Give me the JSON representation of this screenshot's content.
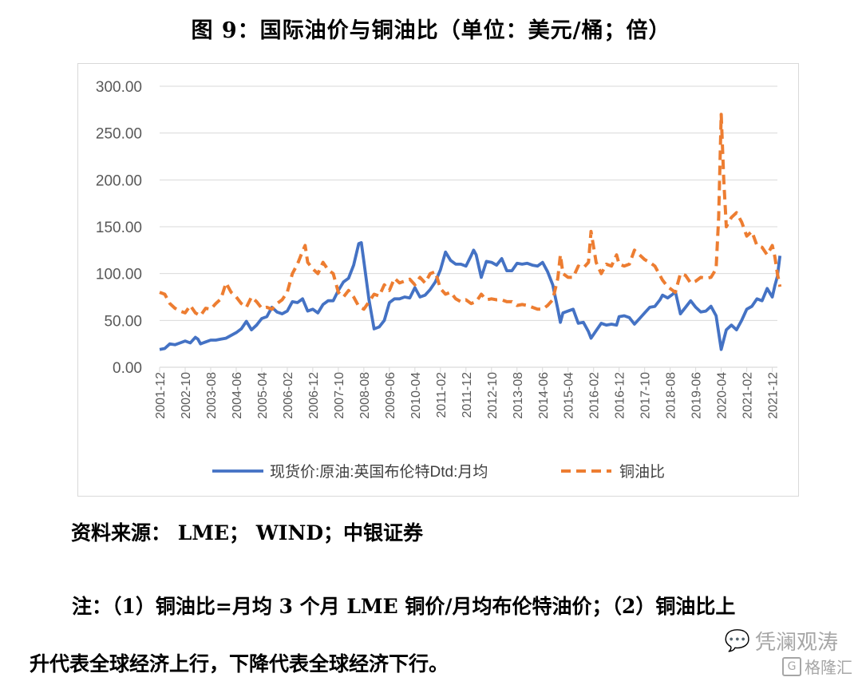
{
  "figure": {
    "title": "图 9：国际油价与铜油比（单位：美元/桶；倍）"
  },
  "source_text": "资料来源： LME； WIND；中银证券",
  "note": {
    "line1": "注：（1）铜油比=月均 3 个月 LME 铜价/月均布伦特油价；（2）铜油比上",
    "line2": "升代表全球经济上行，下降代表全球经济下行。"
  },
  "watermark": {
    "wechat": "凭澜观涛",
    "logo_mark": "G",
    "logo_text": "格隆汇"
  },
  "colors": {
    "oil": "#4472c4",
    "ratio": "#ed7d31",
    "grid": "#d9d9d9",
    "axis_text": "#595959"
  },
  "chart_data": {
    "type": "line",
    "ylim": [
      0,
      300
    ],
    "y_ticks": [
      "0.00",
      "50.00",
      "100.00",
      "150.00",
      "200.00",
      "250.00",
      "300.00"
    ],
    "x_tick_labels": [
      "2001-12",
      "2002-10",
      "2003-08",
      "2004-06",
      "2005-04",
      "2006-02",
      "2006-12",
      "2007-10",
      "2008-08",
      "2009-06",
      "2010-04",
      "2011-02",
      "2011-12",
      "2012-10",
      "2013-08",
      "2014-06",
      "2015-04",
      "2016-02",
      "2016-12",
      "2017-10",
      "2018-08",
      "2019-06",
      "2020-04",
      "2021-02",
      "2021-12"
    ],
    "x_range": [
      "2001-12",
      "2022-02"
    ],
    "grid": "horizontal",
    "legend_position": "bottom",
    "series": [
      {
        "name": "现货价:原油:英国布伦特Dtd:月均",
        "style": "solid",
        "points": [
          [
            "2001-12",
            19
          ],
          [
            "2002-02",
            20
          ],
          [
            "2002-04",
            25
          ],
          [
            "2002-06",
            24
          ],
          [
            "2002-08",
            26
          ],
          [
            "2002-10",
            28
          ],
          [
            "2002-12",
            26
          ],
          [
            "2003-02",
            32
          ],
          [
            "2003-03",
            30
          ],
          [
            "2003-04",
            25
          ],
          [
            "2003-06",
            27
          ],
          [
            "2003-08",
            29
          ],
          [
            "2003-10",
            29
          ],
          [
            "2003-12",
            30
          ],
          [
            "2004-02",
            31
          ],
          [
            "2004-04",
            34
          ],
          [
            "2004-06",
            37
          ],
          [
            "2004-08",
            41
          ],
          [
            "2004-10",
            49
          ],
          [
            "2004-12",
            40
          ],
          [
            "2005-02",
            45
          ],
          [
            "2005-04",
            52
          ],
          [
            "2005-06",
            54
          ],
          [
            "2005-08",
            64
          ],
          [
            "2005-10",
            59
          ],
          [
            "2005-12",
            57
          ],
          [
            "2006-02",
            60
          ],
          [
            "2006-04",
            70
          ],
          [
            "2006-06",
            69
          ],
          [
            "2006-08",
            73
          ],
          [
            "2006-10",
            60
          ],
          [
            "2006-12",
            62
          ],
          [
            "2007-02",
            58
          ],
          [
            "2007-04",
            67
          ],
          [
            "2007-06",
            71
          ],
          [
            "2007-08",
            71
          ],
          [
            "2007-10",
            82
          ],
          [
            "2007-12",
            91
          ],
          [
            "2008-02",
            95
          ],
          [
            "2008-04",
            109
          ],
          [
            "2008-06",
            132
          ],
          [
            "2008-07",
            133
          ],
          [
            "2008-08",
            113
          ],
          [
            "2008-10",
            72
          ],
          [
            "2008-12",
            41
          ],
          [
            "2009-02",
            43
          ],
          [
            "2009-04",
            50
          ],
          [
            "2009-06",
            69
          ],
          [
            "2009-08",
            73
          ],
          [
            "2009-10",
            73
          ],
          [
            "2009-12",
            75
          ],
          [
            "2010-02",
            74
          ],
          [
            "2010-04",
            85
          ],
          [
            "2010-06",
            75
          ],
          [
            "2010-08",
            77
          ],
          [
            "2010-10",
            83
          ],
          [
            "2010-12",
            91
          ],
          [
            "2011-02",
            104
          ],
          [
            "2011-04",
            123
          ],
          [
            "2011-06",
            114
          ],
          [
            "2011-08",
            110
          ],
          [
            "2011-10",
            110
          ],
          [
            "2011-12",
            108
          ],
          [
            "2012-02",
            119
          ],
          [
            "2012-03",
            125
          ],
          [
            "2012-04",
            120
          ],
          [
            "2012-06",
            96
          ],
          [
            "2012-08",
            113
          ],
          [
            "2012-10",
            112
          ],
          [
            "2012-12",
            109
          ],
          [
            "2013-02",
            116
          ],
          [
            "2013-04",
            103
          ],
          [
            "2013-06",
            103
          ],
          [
            "2013-08",
            111
          ],
          [
            "2013-10",
            110
          ],
          [
            "2013-12",
            111
          ],
          [
            "2014-02",
            109
          ],
          [
            "2014-04",
            108
          ],
          [
            "2014-06",
            112
          ],
          [
            "2014-08",
            102
          ],
          [
            "2014-10",
            88
          ],
          [
            "2014-12",
            62
          ],
          [
            "2015-01",
            48
          ],
          [
            "2015-02",
            58
          ],
          [
            "2015-04",
            60
          ],
          [
            "2015-06",
            62
          ],
          [
            "2015-08",
            47
          ],
          [
            "2015-10",
            48
          ],
          [
            "2015-12",
            38
          ],
          [
            "2016-01",
            31
          ],
          [
            "2016-03",
            39
          ],
          [
            "2016-05",
            47
          ],
          [
            "2016-07",
            45
          ],
          [
            "2016-09",
            46
          ],
          [
            "2016-11",
            45
          ],
          [
            "2016-12",
            54
          ],
          [
            "2017-02",
            55
          ],
          [
            "2017-04",
            53
          ],
          [
            "2017-06",
            46
          ],
          [
            "2017-08",
            52
          ],
          [
            "2017-10",
            58
          ],
          [
            "2017-12",
            64
          ],
          [
            "2018-02",
            65
          ],
          [
            "2018-04",
            72
          ],
          [
            "2018-05",
            77
          ],
          [
            "2018-07",
            74
          ],
          [
            "2018-09",
            78
          ],
          [
            "2018-10",
            81
          ],
          [
            "2018-12",
            57
          ],
          [
            "2019-02",
            64
          ],
          [
            "2019-04",
            71
          ],
          [
            "2019-06",
            64
          ],
          [
            "2019-08",
            59
          ],
          [
            "2019-10",
            60
          ],
          [
            "2019-12",
            65
          ],
          [
            "2020-02",
            55
          ],
          [
            "2020-04",
            19
          ],
          [
            "2020-06",
            40
          ],
          [
            "2020-08",
            45
          ],
          [
            "2020-10",
            40
          ],
          [
            "2020-12",
            50
          ],
          [
            "2021-02",
            62
          ],
          [
            "2021-04",
            65
          ],
          [
            "2021-06",
            73
          ],
          [
            "2021-08",
            71
          ],
          [
            "2021-10",
            84
          ],
          [
            "2021-12",
            75
          ],
          [
            "2022-01",
            87
          ],
          [
            "2022-02",
            97
          ],
          [
            "2022-03",
            119
          ]
        ]
      },
      {
        "name": "铜油比",
        "style": "dashed",
        "points": [
          [
            "2001-12",
            80
          ],
          [
            "2002-02",
            78
          ],
          [
            "2002-04",
            68
          ],
          [
            "2002-06",
            63
          ],
          [
            "2002-08",
            60
          ],
          [
            "2002-10",
            58
          ],
          [
            "2002-12",
            66
          ],
          [
            "2003-02",
            58
          ],
          [
            "2003-04",
            55
          ],
          [
            "2003-06",
            63
          ],
          [
            "2003-08",
            62
          ],
          [
            "2003-10",
            68
          ],
          [
            "2003-12",
            73
          ],
          [
            "2004-02",
            90
          ],
          [
            "2004-04",
            80
          ],
          [
            "2004-06",
            75
          ],
          [
            "2004-08",
            68
          ],
          [
            "2004-10",
            64
          ],
          [
            "2004-12",
            75
          ],
          [
            "2005-02",
            70
          ],
          [
            "2005-04",
            63
          ],
          [
            "2005-06",
            64
          ],
          [
            "2005-08",
            62
          ],
          [
            "2005-10",
            68
          ],
          [
            "2005-12",
            72
          ],
          [
            "2006-02",
            80
          ],
          [
            "2006-04",
            100
          ],
          [
            "2006-06",
            110
          ],
          [
            "2006-08",
            124
          ],
          [
            "2006-09",
            130
          ],
          [
            "2006-10",
            112
          ],
          [
            "2006-12",
            105
          ],
          [
            "2007-02",
            100
          ],
          [
            "2007-04",
            112
          ],
          [
            "2007-06",
            104
          ],
          [
            "2007-08",
            100
          ],
          [
            "2007-10",
            80
          ],
          [
            "2007-12",
            75
          ],
          [
            "2008-02",
            82
          ],
          [
            "2008-04",
            75
          ],
          [
            "2008-06",
            65
          ],
          [
            "2008-08",
            62
          ],
          [
            "2008-10",
            70
          ],
          [
            "2008-12",
            78
          ],
          [
            "2009-02",
            76
          ],
          [
            "2009-04",
            88
          ],
          [
            "2009-06",
            82
          ],
          [
            "2009-08",
            95
          ],
          [
            "2009-10",
            90
          ],
          [
            "2009-12",
            92
          ],
          [
            "2010-02",
            94
          ],
          [
            "2010-04",
            88
          ],
          [
            "2010-06",
            96
          ],
          [
            "2010-08",
            90
          ],
          [
            "2010-10",
            100
          ],
          [
            "2010-12",
            102
          ],
          [
            "2011-02",
            84
          ],
          [
            "2011-04",
            78
          ],
          [
            "2011-06",
            80
          ],
          [
            "2011-08",
            73
          ],
          [
            "2011-10",
            70
          ],
          [
            "2011-12",
            72
          ],
          [
            "2012-02",
            68
          ],
          [
            "2012-04",
            70
          ],
          [
            "2012-06",
            78
          ],
          [
            "2012-08",
            72
          ],
          [
            "2012-10",
            73
          ],
          [
            "2012-12",
            72
          ],
          [
            "2013-02",
            72
          ],
          [
            "2013-04",
            70
          ],
          [
            "2013-06",
            70
          ],
          [
            "2013-08",
            66
          ],
          [
            "2013-10",
            67
          ],
          [
            "2013-12",
            66
          ],
          [
            "2014-02",
            64
          ],
          [
            "2014-04",
            62
          ],
          [
            "2014-06",
            62
          ],
          [
            "2014-08",
            66
          ],
          [
            "2014-10",
            72
          ],
          [
            "2014-12",
            95
          ],
          [
            "2015-01",
            120
          ],
          [
            "2015-02",
            100
          ],
          [
            "2015-04",
            96
          ],
          [
            "2015-06",
            96
          ],
          [
            "2015-08",
            108
          ],
          [
            "2015-10",
            106
          ],
          [
            "2015-12",
            112
          ],
          [
            "2016-01",
            145
          ],
          [
            "2016-03",
            112
          ],
          [
            "2016-05",
            100
          ],
          [
            "2016-07",
            110
          ],
          [
            "2016-09",
            108
          ],
          [
            "2016-11",
            120
          ],
          [
            "2016-12",
            110
          ],
          [
            "2017-02",
            108
          ],
          [
            "2017-04",
            110
          ],
          [
            "2017-06",
            125
          ],
          [
            "2017-08",
            120
          ],
          [
            "2017-10",
            115
          ],
          [
            "2017-12",
            112
          ],
          [
            "2018-02",
            108
          ],
          [
            "2018-04",
            98
          ],
          [
            "2018-05",
            93
          ],
          [
            "2018-07",
            86
          ],
          [
            "2018-09",
            82
          ],
          [
            "2018-10",
            80
          ],
          [
            "2018-12",
            100
          ],
          [
            "2019-02",
            98
          ],
          [
            "2019-04",
            90
          ],
          [
            "2019-06",
            92
          ],
          [
            "2019-08",
            96
          ],
          [
            "2019-10",
            95
          ],
          [
            "2019-12",
            96
          ],
          [
            "2020-02",
            105
          ],
          [
            "2020-03",
            160
          ],
          [
            "2020-04",
            270
          ],
          [
            "2020-05",
            200
          ],
          [
            "2020-06",
            150
          ],
          [
            "2020-08",
            160
          ],
          [
            "2020-10",
            165
          ],
          [
            "2020-12",
            155
          ],
          [
            "2021-02",
            140
          ],
          [
            "2021-04",
            145
          ],
          [
            "2021-06",
            130
          ],
          [
            "2021-08",
            128
          ],
          [
            "2021-10",
            120
          ],
          [
            "2021-12",
            130
          ],
          [
            "2022-01",
            118
          ],
          [
            "2022-02",
            100
          ],
          [
            "2022-03",
            86
          ]
        ]
      }
    ]
  }
}
